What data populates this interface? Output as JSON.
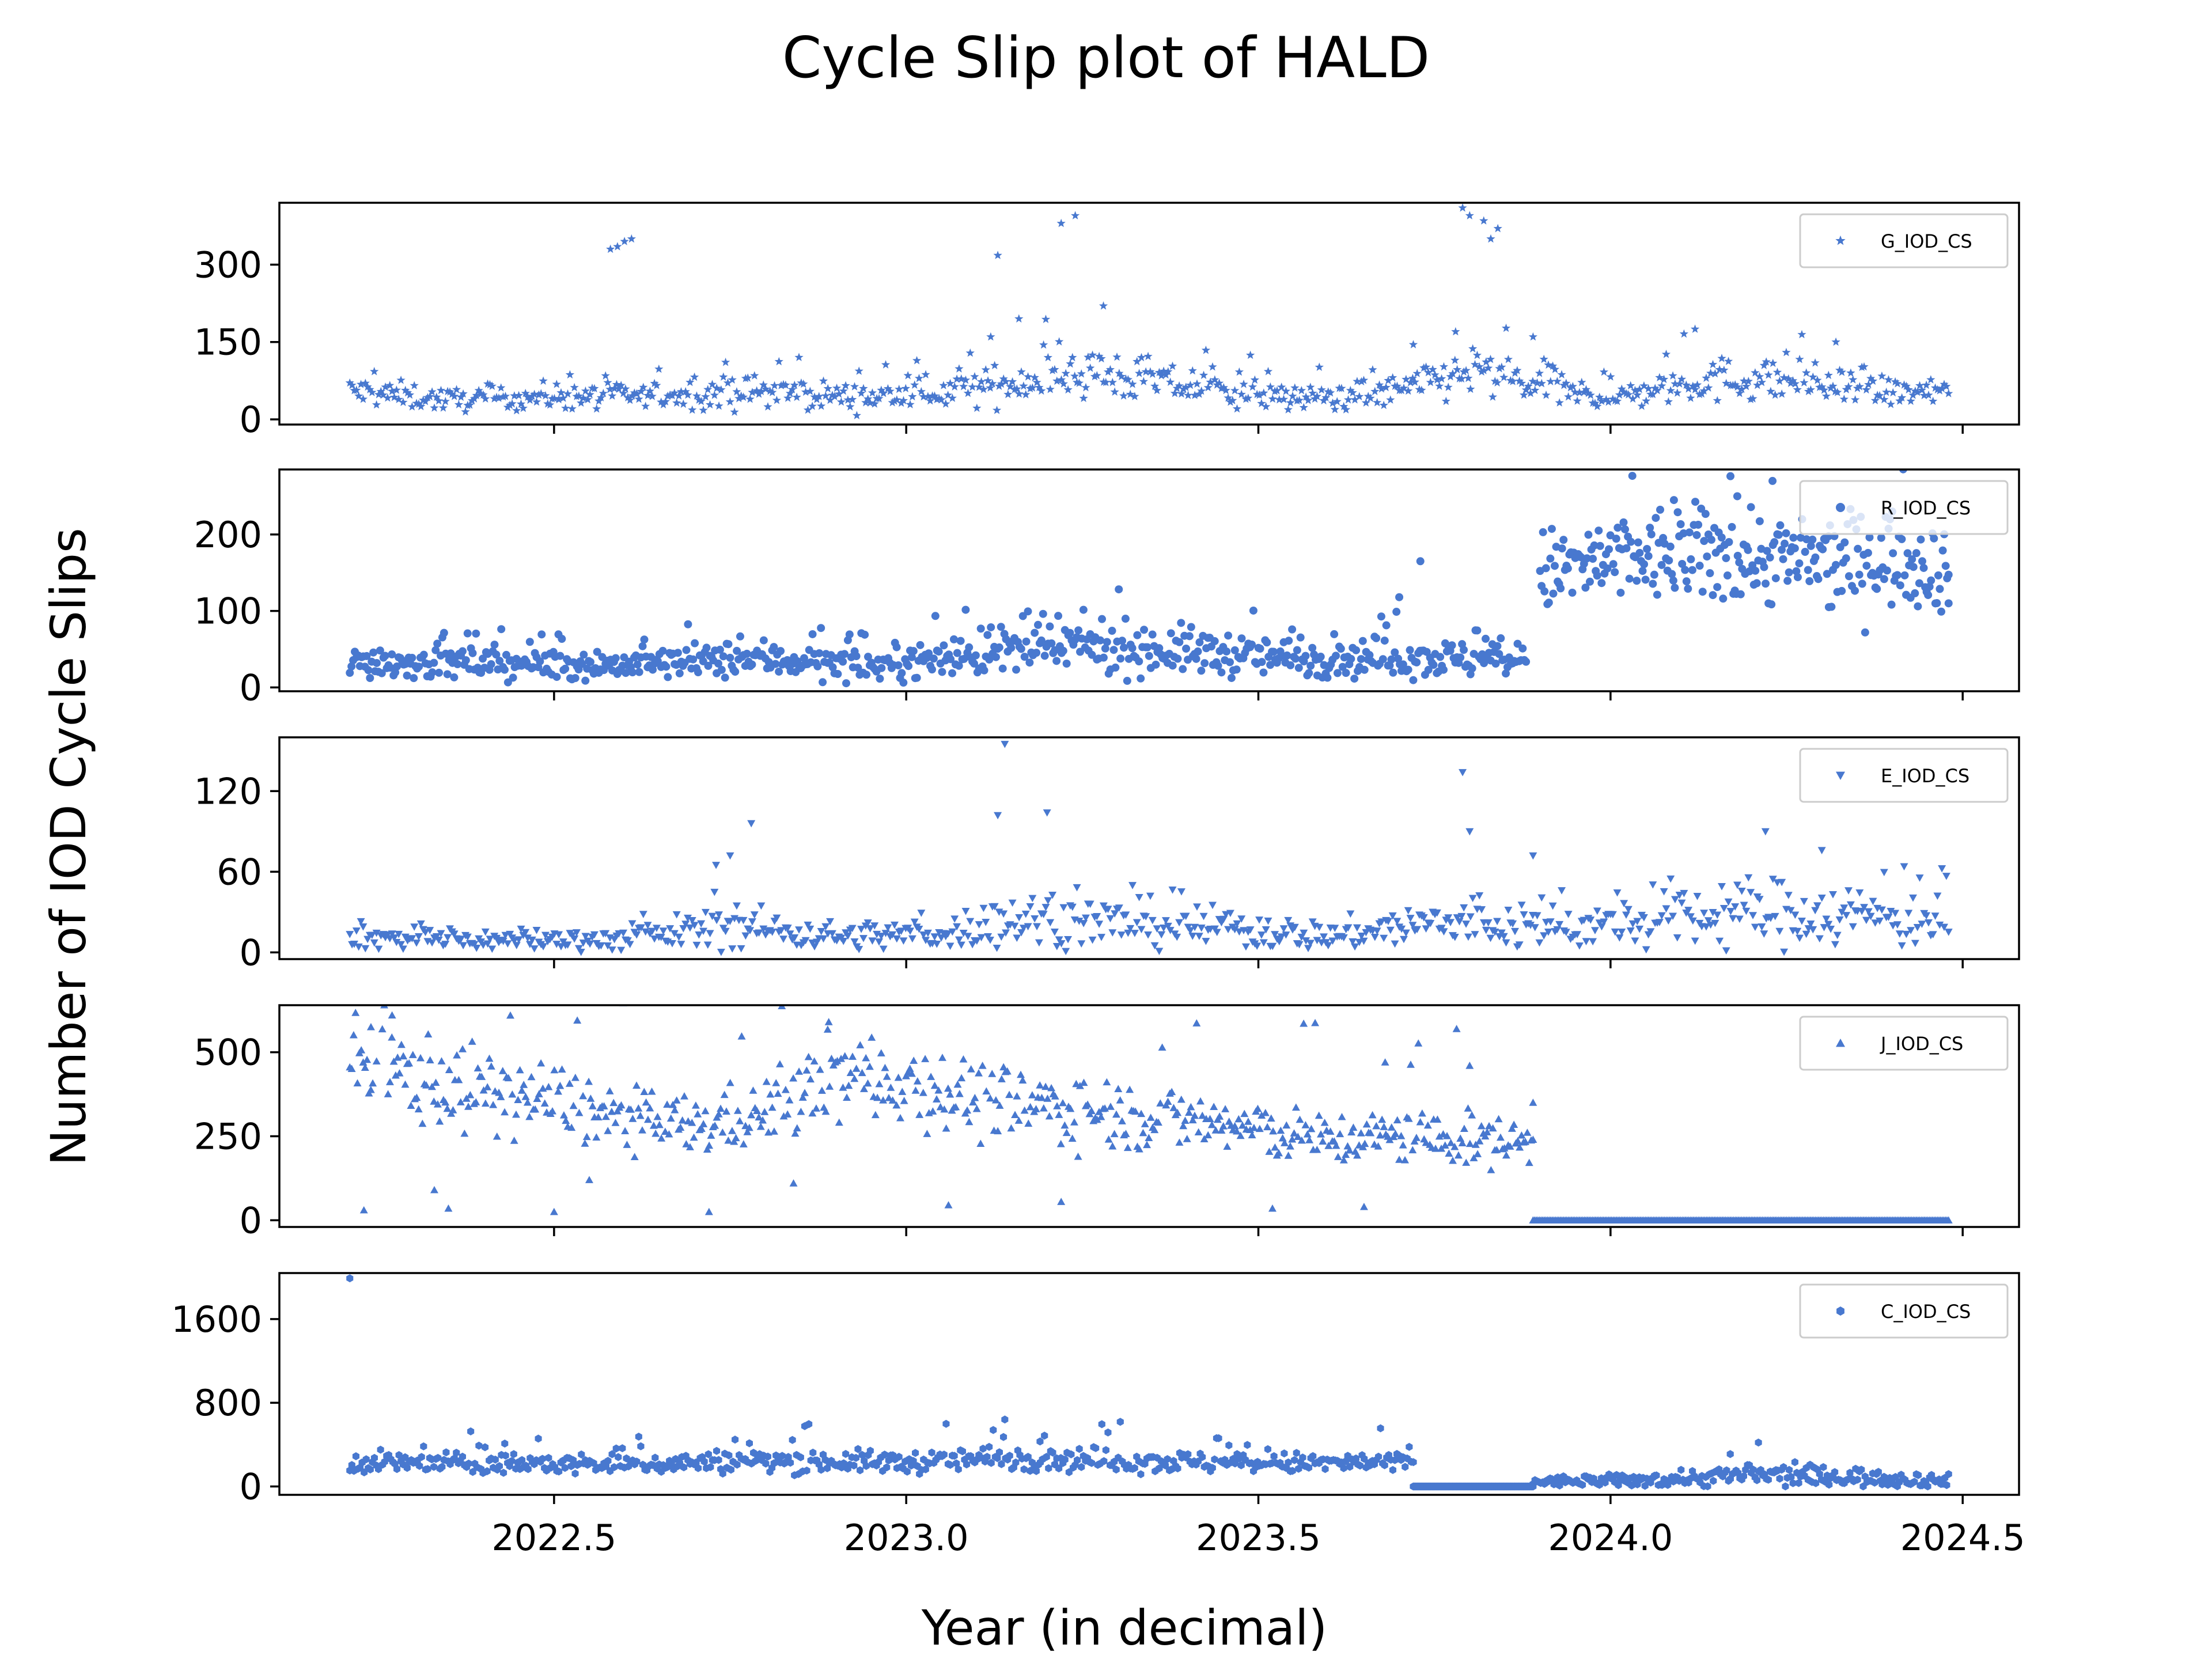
{
  "chart_data": {
    "type": "scatter",
    "title": "Cycle Slip plot of HALD",
    "xlabel": "Year (in decimal)",
    "ylabel": "Number of IOD Cycle Slips",
    "xlim": [
      2022.11,
      2024.58
    ],
    "xticks": [
      "2022.5",
      "2023.0",
      "2023.5",
      "2024.0",
      "2024.5"
    ],
    "xtick_values": [
      2022.5,
      2023.0,
      2023.5,
      2024.0,
      2024.5
    ],
    "color": "#4878CF",
    "legend_position": "upper right",
    "panels": [
      {
        "name": "G_IOD_CS",
        "marker": "star",
        "ylim": [
          -10,
          420
        ],
        "yticks": [
          "0",
          "150",
          "300"
        ],
        "ytick_values": [
          0,
          150,
          300
        ],
        "segments": [
          {
            "x": [
              2022.21,
              2022.35,
              2022.5,
              2022.62,
              2022.8,
              2022.95,
              2023.1,
              2023.25,
              2023.4,
              2023.55,
              2023.7,
              2023.8,
              2023.88,
              2024.0,
              2024.12,
              2024.25,
              2024.35,
              2024.48
            ],
            "y": [
              55,
              38,
              45,
              45,
              55,
              42,
              60,
              95,
              65,
              40,
              55,
              95,
              70,
              40,
              75,
              80,
              55,
              50
            ],
            "n": 720,
            "spread": 0.28
          }
        ],
        "outliers": [
          {
            "x": 2022.58,
            "y": 330
          },
          {
            "x": 2022.59,
            "y": 335
          },
          {
            "x": 2022.6,
            "y": 345
          },
          {
            "x": 2022.61,
            "y": 350
          },
          {
            "x": 2023.13,
            "y": 318
          },
          {
            "x": 2023.22,
            "y": 380
          },
          {
            "x": 2023.24,
            "y": 395
          },
          {
            "x": 2023.79,
            "y": 410
          },
          {
            "x": 2023.8,
            "y": 395
          },
          {
            "x": 2023.82,
            "y": 385
          },
          {
            "x": 2023.84,
            "y": 370
          },
          {
            "x": 2023.83,
            "y": 350
          },
          {
            "x": 2023.12,
            "y": 160
          },
          {
            "x": 2023.16,
            "y": 195
          },
          {
            "x": 2023.28,
            "y": 220
          },
          {
            "x": 2023.72,
            "y": 145
          },
          {
            "x": 2023.78,
            "y": 170
          },
          {
            "x": 2023.89,
            "y": 160
          },
          {
            "x": 2024.12,
            "y": 175
          },
          {
            "x": 2024.32,
            "y": 150
          }
        ]
      },
      {
        "name": "R_IOD_CS",
        "marker": "circle",
        "ylim": [
          -5,
          285
        ],
        "yticks": [
          "0",
          "100",
          "200"
        ],
        "ytick_values": [
          0,
          100,
          200
        ],
        "segments": [
          {
            "x": [
              2022.21,
              2022.4,
              2022.6,
              2022.8,
              2022.95,
              2023.1,
              2023.25,
              2023.4,
              2023.55,
              2023.7,
              2023.88
            ],
            "y": [
              35,
              32,
              30,
              38,
              28,
              45,
              55,
              48,
              38,
              40,
              35
            ],
            "n": 700,
            "spread": 0.32
          },
          {
            "x": [
              2023.9,
              2024.0,
              2024.1,
              2024.2,
              2024.3,
              2024.4,
              2024.48
            ],
            "y": [
              150,
              165,
              175,
              170,
              165,
              170,
              155
            ],
            "n": 280,
            "spread": 0.18
          }
        ],
        "outliers": [
          {
            "x": 2023.73,
            "y": 165
          },
          {
            "x": 2023.7,
            "y": 118
          },
          {
            "x": 2024.23,
            "y": 270
          },
          {
            "x": 2024.18,
            "y": 250
          },
          {
            "x": 2024.09,
            "y": 245
          },
          {
            "x": 2024.4,
            "y": 230
          },
          {
            "x": 2024.31,
            "y": 105
          },
          {
            "x": 2024.48,
            "y": 110
          }
        ]
      },
      {
        "name": "E_IOD_CS",
        "marker": "triangle-down",
        "ylim": [
          -5,
          160
        ],
        "yticks": [
          "0",
          "60",
          "120"
        ],
        "ytick_values": [
          0,
          60,
          120
        ],
        "segments": [
          {
            "x": [
              2022.21,
              2022.4,
              2022.6,
              2022.75,
              2022.9,
              2023.05,
              2023.15,
              2023.3,
              2023.45,
              2023.6,
              2023.75,
              2023.9,
              2024.05,
              2024.2,
              2024.35,
              2024.48
            ],
            "y": [
              12,
              9,
              10,
              20,
              12,
              14,
              25,
              22,
              18,
              12,
              22,
              18,
              22,
              30,
              28,
              25
            ],
            "n": 720,
            "spread": 0.42
          }
        ],
        "outliers": [
          {
            "x": 2023.14,
            "y": 155
          },
          {
            "x": 2023.79,
            "y": 134
          },
          {
            "x": 2023.13,
            "y": 102
          },
          {
            "x": 2023.2,
            "y": 104
          },
          {
            "x": 2022.78,
            "y": 96
          },
          {
            "x": 2023.8,
            "y": 90
          },
          {
            "x": 2024.22,
            "y": 90
          },
          {
            "x": 2023.89,
            "y": 72
          },
          {
            "x": 2024.3,
            "y": 76
          },
          {
            "x": 2022.75,
            "y": 72
          },
          {
            "x": 2022.73,
            "y": 65
          }
        ]
      },
      {
        "name": "J_IOD_CS",
        "marker": "triangle-up",
        "ylim": [
          -20,
          640
        ],
        "yticks": [
          "0",
          "250",
          "500"
        ],
        "ytick_values": [
          0,
          250,
          500
        ],
        "segments": [
          {
            "x": [
              2022.21,
              2022.3,
              2022.4,
              2022.5,
              2022.6,
              2022.7,
              2022.8,
              2022.9,
              2023.0,
              2023.1,
              2023.2,
              2023.3,
              2023.4,
              2023.5,
              2023.6,
              2023.7,
              2023.8,
              2023.89
            ],
            "y": [
              460,
              430,
              380,
              360,
              300,
              280,
              320,
              430,
              420,
              360,
              340,
              320,
              300,
              270,
              240,
              250,
              240,
              230
            ],
            "n": 620,
            "spread": 0.16
          },
          {
            "x": [
              2023.89,
              2024.48
            ],
            "y": [
              0,
              0
            ],
            "n": 260,
            "spread": 0
          }
        ],
        "outliers": [
          {
            "x": 2022.23,
            "y": 30
          },
          {
            "x": 2022.33,
            "y": 90
          },
          {
            "x": 2022.35,
            "y": 35
          },
          {
            "x": 2022.5,
            "y": 25
          },
          {
            "x": 2022.55,
            "y": 120
          },
          {
            "x": 2022.72,
            "y": 25
          },
          {
            "x": 2022.84,
            "y": 110
          },
          {
            "x": 2023.06,
            "y": 45
          },
          {
            "x": 2023.22,
            "y": 55
          },
          {
            "x": 2023.52,
            "y": 35
          },
          {
            "x": 2023.65,
            "y": 40
          },
          {
            "x": 2022.89,
            "y": 590
          },
          {
            "x": 2022.27,
            "y": 610
          },
          {
            "x": 2022.24,
            "y": 575
          },
          {
            "x": 2023.68,
            "y": 470
          },
          {
            "x": 2023.8,
            "y": 460
          },
          {
            "x": 2023.89,
            "y": 350
          }
        ]
      },
      {
        "name": "C_IOD_CS",
        "marker": "hexagon",
        "ylim": [
          -80,
          2040
        ],
        "yticks": [
          "0",
          "800",
          "1600"
        ],
        "ytick_values": [
          0,
          800,
          1600
        ],
        "segments": [
          {
            "x": [
              2022.21,
              2022.4,
              2022.6,
              2022.8,
              2023.0,
              2023.15,
              2023.3,
              2023.5,
              2023.72
            ],
            "y": [
              230,
              220,
              210,
              250,
              230,
              280,
              250,
              220,
              230
            ],
            "n": 520,
            "spread": 0.22
          },
          {
            "x": [
              2023.72,
              2023.89
            ],
            "y": [
              0,
              0
            ],
            "n": 120,
            "spread": 0
          },
          {
            "x": [
              2023.89,
              2024.05,
              2024.2,
              2024.35,
              2024.48
            ],
            "y": [
              45,
              60,
              110,
              90,
              55
            ],
            "n": 220,
            "spread": 0.5
          }
        ],
        "outliers": [
          {
            "x": 2022.21,
            "y": 1990
          },
          {
            "x": 2023.14,
            "y": 640
          },
          {
            "x": 2022.43,
            "y": 410
          },
          {
            "x": 2023.19,
            "y": 430
          },
          {
            "x": 2024.21,
            "y": 420
          },
          {
            "x": 2024.17,
            "y": 310
          }
        ]
      }
    ]
  }
}
